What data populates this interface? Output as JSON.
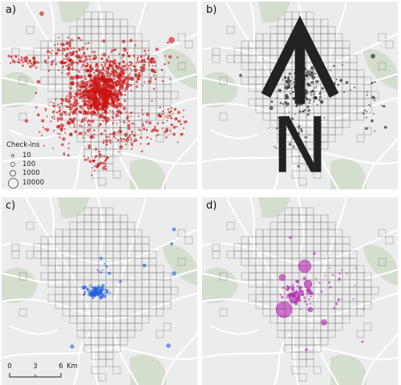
{
  "panels": [
    {
      "id": "a",
      "label": "a)",
      "color": "#cc1111"
    },
    {
      "id": "b",
      "label": "b)",
      "color": "#1a1a1a"
    },
    {
      "id": "c",
      "label": "c)",
      "color": "#1f5fe0"
    },
    {
      "id": "d",
      "label": "d)",
      "color": "#b01fb0"
    }
  ],
  "legend": {
    "title": "Check-ins",
    "items": [
      {
        "label": "10"
      },
      {
        "label": "100"
      },
      {
        "label": "1000"
      },
      {
        "label": "10000"
      }
    ]
  },
  "north_arrow": {
    "label": "N"
  },
  "scale": {
    "ticks": [
      "0",
      "3",
      "6"
    ],
    "unit": "Km"
  },
  "colors": {
    "background": "#ececec",
    "road": "#ffffff",
    "park": "#c9d9c3",
    "grid_stroke": "#8a8a8a"
  }
}
